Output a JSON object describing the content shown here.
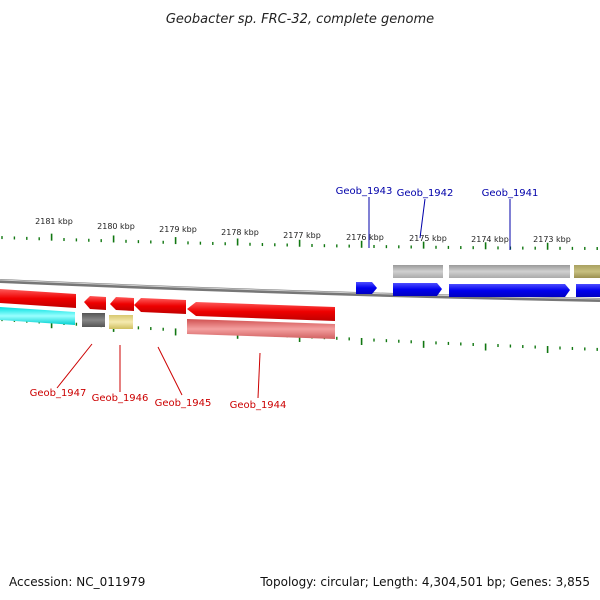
{
  "title": "Geobacter sp. FRC-32, complete genome",
  "footer": {
    "accession": "Accession: NC_011979",
    "summary": "Topology: circular; Length: 4,304,501 bp; Genes: 3,855"
  },
  "colors": {
    "forward": "#0000ee",
    "reverse": "#ee0000",
    "forward_label": "#0000aa",
    "reverse_label": "#cc0000",
    "tick": "#117711",
    "backbone": "#888888"
  },
  "ticks": [
    "2181 kbp",
    "2180 kbp",
    "2179 kbp",
    "2178 kbp",
    "2177 kbp",
    "2176 kbp",
    "2175 kbp",
    "2174 kbp",
    "2173 kbp"
  ],
  "forward_labels": [
    "Geob_1943",
    "Geob_1942",
    "Geob_1941"
  ],
  "reverse_labels": [
    "Geob_1947",
    "Geob_1946",
    "Geob_1945",
    "Geob_1944"
  ]
}
